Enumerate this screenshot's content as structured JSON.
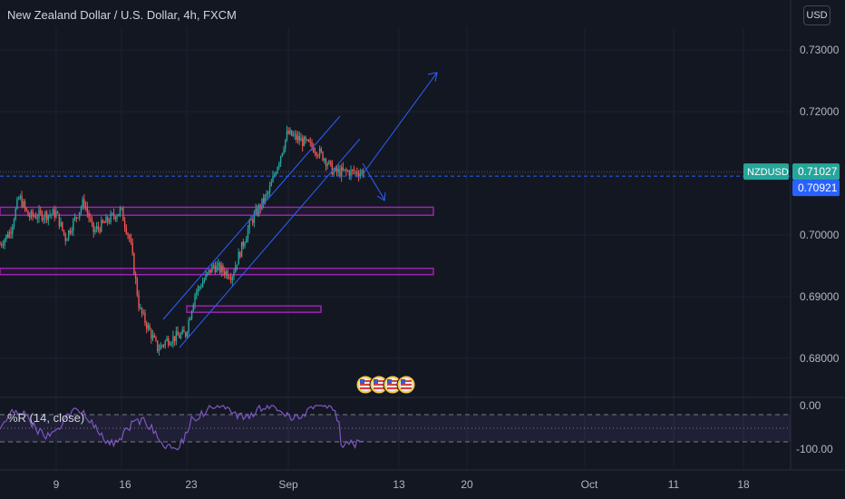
{
  "header": {
    "title": "New Zealand Dollar / U.S. Dollar, 4h, FXCM",
    "currency_button": "USD"
  },
  "price_axis": {
    "ticks": [
      "0.73000",
      "0.72000",
      "0.71000",
      "0.70000",
      "0.69000",
      "0.68000"
    ],
    "symbol_tag": "NZDUSD",
    "last_price": "0.71027",
    "cursor_price": "0.70921"
  },
  "indicator": {
    "label": "%R (14, close)",
    "ticks": [
      "0.00",
      "-100.00"
    ]
  },
  "time_axis": {
    "labels": [
      "9",
      "16",
      "23",
      "Sep",
      "13",
      "20",
      "Oct",
      "11",
      "18"
    ]
  },
  "colors": {
    "background": "#131722",
    "up": "#26a69a",
    "down": "#ef5350",
    "zone": "#9c27b0",
    "channel": "#2962ff",
    "oscillator": "#7e57c2",
    "price_tag": "#26a69a",
    "cursor_tag": "#2962ff"
  },
  "events": [
    "us-flag-icon",
    "us-flag-icon",
    "us-flag-icon",
    "us-flag-icon"
  ],
  "chart_data": {
    "type": "candlestick",
    "title": "New Zealand Dollar / U.S. Dollar, 4h, FXCM",
    "symbol": "NZDUSD",
    "ylim": [
      0.6775,
      0.7365
    ],
    "last_price": 0.71027,
    "price_key_points": [
      {
        "date": "2021-08-04",
        "close": 0.7005
      },
      {
        "date": "2021-08-05",
        "close": 0.7062
      },
      {
        "date": "2021-08-06",
        "close": 0.703
      },
      {
        "date": "2021-08-09",
        "close": 0.7035
      },
      {
        "date": "2021-08-10",
        "close": 0.6995
      },
      {
        "date": "2021-08-12",
        "close": 0.7055
      },
      {
        "date": "2021-08-13",
        "close": 0.7005
      },
      {
        "date": "2021-08-16",
        "close": 0.704
      },
      {
        "date": "2021-08-17",
        "close": 0.699
      },
      {
        "date": "2021-08-18",
        "close": 0.688
      },
      {
        "date": "2021-08-20",
        "close": 0.6815
      },
      {
        "date": "2021-08-21",
        "close": 0.683
      },
      {
        "date": "2021-08-23",
        "close": 0.684
      },
      {
        "date": "2021-08-24",
        "close": 0.6905
      },
      {
        "date": "2021-08-26",
        "close": 0.695
      },
      {
        "date": "2021-08-28",
        "close": 0.6935
      },
      {
        "date": "2021-08-30",
        "close": 0.702
      },
      {
        "date": "2021-09-01",
        "close": 0.707
      },
      {
        "date": "2021-09-03",
        "close": 0.7165
      },
      {
        "date": "2021-09-06",
        "close": 0.714
      },
      {
        "date": "2021-09-07",
        "close": 0.7125
      },
      {
        "date": "2021-09-08",
        "close": 0.7102
      }
    ],
    "zones": [
      {
        "low": 0.7032,
        "high": 0.7045
      },
      {
        "low": 0.6936,
        "high": 0.6946
      },
      {
        "low": 0.6877,
        "high": 0.6885
      }
    ],
    "oscillator": {
      "name": "%R (14, close)",
      "ylim": [
        -105,
        5
      ],
      "levels": [
        -20,
        -50,
        -80
      ]
    },
    "x_labels": [
      "9",
      "16",
      "23",
      "Sep",
      "13",
      "20",
      "Oct",
      "11",
      "18"
    ]
  }
}
